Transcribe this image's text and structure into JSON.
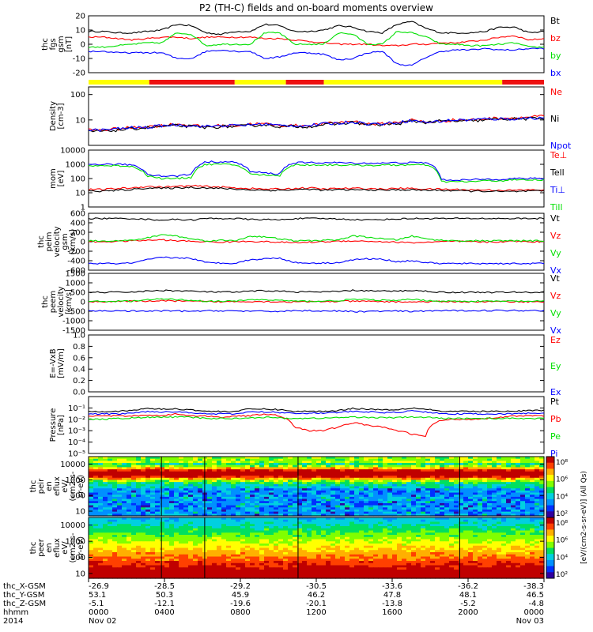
{
  "title": "P2 (TH-C) fields and on-board moments overview",
  "colors": {
    "black": "#000000",
    "red": "#ff0000",
    "green": "#00e000",
    "blue": "#0000ff",
    "yellow": "#ffff00",
    "bar_red": "#ee1111"
  },
  "chart_data": [
    {
      "type": "line",
      "ylabel_lines": [
        "thc",
        "fgs",
        "gsm",
        "[nT]"
      ],
      "ylim": [
        -20,
        20
      ],
      "yticks": [
        "20",
        "10",
        "0",
        "-10",
        "-20"
      ],
      "series": [
        {
          "name": "Bt",
          "color": "#000000",
          "values": [
            9,
            9,
            8,
            8,
            9,
            10,
            14,
            13,
            8,
            7,
            9,
            9,
            14,
            13,
            9,
            9,
            10,
            13,
            12,
            9,
            8,
            14,
            16,
            11,
            8,
            8,
            8,
            9,
            12,
            12,
            8,
            9
          ]
        },
        {
          "name": "bz",
          "color": "#ff0000",
          "values": [
            5,
            5,
            4,
            3,
            4,
            5,
            5,
            4,
            5,
            5,
            5,
            5,
            4,
            4,
            3,
            2,
            1,
            0,
            0,
            0,
            -1,
            -1,
            0,
            0,
            1,
            1,
            2,
            3,
            5,
            6,
            3,
            4
          ]
        },
        {
          "name": "by",
          "color": "#00e000",
          "values": [
            -2,
            -2,
            -1,
            0,
            1,
            1,
            8,
            7,
            -1,
            0,
            0,
            0,
            8,
            8,
            0,
            0,
            0,
            8,
            7,
            0,
            0,
            9,
            8,
            5,
            0,
            0,
            -1,
            -1,
            0,
            1,
            -2,
            -2
          ]
        },
        {
          "name": "bx",
          "color": "#0000ff",
          "values": [
            -5,
            -5,
            -6,
            -6,
            -6,
            -6,
            -10,
            -10,
            -5,
            -4,
            -5,
            -5,
            -10,
            -9,
            -6,
            -6,
            -7,
            -11,
            -10,
            -6,
            -5,
            -14,
            -15,
            -9,
            -5,
            -4,
            -4,
            -3,
            -4,
            -4,
            -3,
            -3
          ]
        }
      ],
      "mode_bar": {
        "segments": [
          "yellow",
          "red",
          "yellow",
          "red",
          "yellow",
          "red"
        ],
        "breaks_hours": [
          0,
          3.2,
          7.7,
          10.4,
          12.4,
          21.8,
          24
        ]
      }
    },
    {
      "type": "line",
      "ylabel_lines": [
        "Density",
        "[cm-3]"
      ],
      "scale": "log",
      "ylim": [
        1,
        200
      ],
      "yticks": [
        "100",
        "10"
      ],
      "series": [
        {
          "name": "Ne",
          "color": "#ff0000",
          "values": [
            4,
            4,
            4.5,
            5,
            5.5,
            6,
            7,
            6,
            5.5,
            6,
            6,
            7,
            7,
            6,
            6,
            6,
            7,
            8,
            9,
            7,
            7,
            8,
            10,
            8,
            9,
            10,
            10,
            11,
            12,
            12,
            13,
            14
          ]
        },
        {
          "name": "Ni",
          "color": "#000000",
          "values": [
            3.5,
            3.6,
            4,
            4.5,
            5,
            5.5,
            6,
            5.5,
            5,
            5.5,
            5.5,
            6,
            6.5,
            5.5,
            5.5,
            5.5,
            6.5,
            7,
            8,
            6.5,
            6.5,
            7,
            9,
            8,
            9,
            9,
            9,
            10,
            11,
            11,
            11,
            12
          ]
        },
        {
          "name": "Npot",
          "color": "#0000ff",
          "values": [
            4,
            4,
            4.5,
            5,
            5,
            6,
            6.5,
            6,
            5.5,
            6,
            6,
            6.5,
            7,
            6,
            6,
            6,
            7,
            7.5,
            8.5,
            7,
            7,
            8,
            9.5,
            8,
            9,
            10,
            10,
            11,
            11,
            11,
            12,
            12
          ]
        }
      ]
    },
    {
      "type": "line",
      "ylabel_lines": [
        "mom",
        "[eV]"
      ],
      "scale": "log",
      "ylim": [
        1,
        10000
      ],
      "yticks": [
        "10000",
        "1000",
        "100",
        "10",
        "1"
      ],
      "series": [
        {
          "name": "Te⊥",
          "color": "#ff0000",
          "values": [
            17,
            17,
            20,
            22,
            28,
            25,
            28,
            30,
            28,
            25,
            22,
            20,
            18,
            18,
            20,
            22,
            18,
            20,
            20,
            20,
            18,
            20,
            20,
            18,
            18,
            17,
            16,
            16,
            15,
            15,
            16,
            16
          ]
        },
        {
          "name": "Tell",
          "color": "#000000",
          "values": [
            13,
            13,
            15,
            17,
            22,
            20,
            22,
            24,
            22,
            20,
            18,
            16,
            15,
            15,
            16,
            18,
            15,
            16,
            16,
            16,
            15,
            16,
            16,
            15,
            15,
            14,
            13,
            13,
            12,
            12,
            13,
            13
          ]
        },
        {
          "name": "Ti⊥",
          "color": "#0000ff",
          "values": [
            1000,
            1000,
            1000,
            900,
            200,
            150,
            150,
            200,
            1500,
            1500,
            1400,
            300,
            250,
            200,
            1300,
            1300,
            1300,
            1300,
            1200,
            1200,
            1200,
            1300,
            1300,
            1300,
            80,
            80,
            80,
            90,
            90,
            100,
            100,
            100
          ]
        },
        {
          "name": "Till",
          "color": "#00e000",
          "values": [
            800,
            800,
            800,
            700,
            150,
            100,
            100,
            120,
            1000,
            1000,
            900,
            200,
            180,
            150,
            900,
            900,
            900,
            900,
            850,
            850,
            850,
            900,
            900,
            900,
            60,
            60,
            60,
            70,
            70,
            80,
            80,
            80
          ]
        }
      ]
    },
    {
      "type": "line",
      "ylabel_lines": [
        "thc",
        "peim",
        "velocity",
        "gsm",
        "[km/s]"
      ],
      "ylim": [
        -600,
        600
      ],
      "yticks": [
        "600",
        "400",
        "200",
        "0",
        "-200",
        "-400",
        "-600"
      ],
      "series": [
        {
          "name": "Vt",
          "color": "#000000",
          "values": [
            490,
            490,
            490,
            490,
            470,
            460,
            470,
            460,
            490,
            490,
            490,
            470,
            470,
            460,
            490,
            490,
            490,
            480,
            470,
            460,
            470,
            480,
            490,
            490,
            490,
            490,
            490,
            490,
            490,
            490,
            490,
            490
          ]
        },
        {
          "name": "Vz",
          "color": "#ff0000",
          "values": [
            0,
            0,
            10,
            20,
            30,
            40,
            20,
            10,
            0,
            -10,
            0,
            10,
            0,
            -10,
            -20,
            -10,
            0,
            10,
            20,
            10,
            0,
            -10,
            -20,
            -10,
            0,
            10,
            0,
            -10,
            0,
            10,
            0,
            0
          ]
        },
        {
          "name": "Vy",
          "color": "#00e000",
          "values": [
            20,
            20,
            20,
            30,
            80,
            150,
            120,
            60,
            20,
            30,
            20,
            120,
            100,
            60,
            20,
            20,
            30,
            40,
            120,
            100,
            60,
            40,
            120,
            60,
            30,
            20,
            20,
            20,
            20,
            20,
            20,
            20
          ]
        },
        {
          "name": "Vx",
          "color": "#0000ff",
          "values": [
            -460,
            -460,
            -460,
            -450,
            -380,
            -330,
            -340,
            -350,
            -440,
            -450,
            -450,
            -380,
            -360,
            -340,
            -440,
            -450,
            -450,
            -440,
            -380,
            -360,
            -370,
            -420,
            -400,
            -440,
            -460,
            -460,
            -460,
            -460,
            -460,
            -460,
            -460,
            -460
          ]
        }
      ]
    },
    {
      "type": "line",
      "ylabel_lines": [
        "thc",
        "peem",
        "velocity",
        "[km/s]"
      ],
      "ylim": [
        -1500,
        1500
      ],
      "yticks": [
        "1500",
        "1000",
        "500",
        "0",
        "-500",
        "-1000",
        "-1500"
      ],
      "series": [
        {
          "name": "Vt",
          "color": "#000000",
          "values": [
            500,
            500,
            500,
            520,
            560,
            600,
            580,
            560,
            520,
            520,
            500,
            560,
            580,
            560,
            520,
            520,
            520,
            540,
            600,
            580,
            560,
            560,
            600,
            560,
            500,
            500,
            500,
            500,
            500,
            500,
            500,
            500
          ]
        },
        {
          "name": "Vz",
          "color": "#ff0000",
          "values": [
            10,
            10,
            20,
            30,
            40,
            50,
            40,
            20,
            10,
            0,
            10,
            20,
            10,
            0,
            -10,
            0,
            10,
            20,
            30,
            20,
            10,
            0,
            -10,
            0,
            10,
            10,
            0,
            0,
            10,
            10,
            0,
            0
          ]
        },
        {
          "name": "Vy",
          "color": "#00e000",
          "values": [
            20,
            20,
            30,
            40,
            100,
            150,
            120,
            80,
            30,
            30,
            30,
            120,
            100,
            80,
            30,
            30,
            40,
            60,
            130,
            110,
            80,
            60,
            130,
            70,
            30,
            30,
            30,
            30,
            30,
            30,
            30,
            30
          ]
        },
        {
          "name": "Vx",
          "color": "#0000ff",
          "values": [
            -480,
            -480,
            -480,
            -490,
            -500,
            -480,
            -490,
            -500,
            -480,
            -470,
            -480,
            -500,
            -510,
            -500,
            -470,
            -470,
            -480,
            -490,
            -520,
            -510,
            -500,
            -490,
            -520,
            -480,
            -470,
            -470,
            -460,
            -460,
            -460,
            -460,
            -460,
            -460
          ]
        }
      ]
    },
    {
      "type": "line",
      "ylabel_lines": [
        "E=-VxB",
        "[mV/m]"
      ],
      "ylim": [
        0,
        1
      ],
      "yticks": [
        "1.0",
        "0.8",
        "0.6",
        "0.4",
        "0.2",
        "0.0"
      ],
      "series": [
        {
          "name": "Ez",
          "color": "#ff0000",
          "values": []
        },
        {
          "name": "Ey",
          "color": "#00e000",
          "values": []
        },
        {
          "name": "Ex",
          "color": "#0000ff",
          "values": []
        }
      ]
    },
    {
      "type": "line",
      "ylabel_lines": [
        "Pressure",
        "[nPa]"
      ],
      "scale": "log",
      "ylim": [
        1e-05,
        1
      ],
      "yticks": [
        "10⁻¹",
        "10⁻²",
        "10⁻³",
        "10⁻⁴",
        "10⁻⁵"
      ],
      "series": [
        {
          "name": "Pt",
          "color": "#000000",
          "values": [
            0.05,
            0.05,
            0.05,
            0.06,
            0.09,
            0.08,
            0.08,
            0.07,
            0.05,
            0.05,
            0.05,
            0.08,
            0.08,
            0.07,
            0.05,
            0.05,
            0.05,
            0.06,
            0.09,
            0.08,
            0.07,
            0.07,
            0.1,
            0.08,
            0.05,
            0.05,
            0.05,
            0.05,
            0.05,
            0.05,
            0.06,
            0.06
          ]
        },
        {
          "name": "Pb",
          "color": "#ff0000",
          "values": [
            0.02,
            0.02,
            0.02,
            0.02,
            0.025,
            0.02,
            0.03,
            0.02,
            0.02,
            0.015,
            0.02,
            0.02,
            0.03,
            0.02,
            0.002,
            0.001,
            0.001,
            0.002,
            0.005,
            0.003,
            0.002,
            0.001,
            0.0005,
            0.0003,
            0.008,
            0.01,
            0.01,
            0.012,
            0.015,
            0.02,
            0.02,
            0.02
          ]
        },
        {
          "name": "Pe",
          "color": "#00e000",
          "values": [
            0.01,
            0.01,
            0.012,
            0.013,
            0.015,
            0.015,
            0.016,
            0.015,
            0.012,
            0.012,
            0.012,
            0.014,
            0.015,
            0.013,
            0.012,
            0.012,
            0.013,
            0.014,
            0.016,
            0.015,
            0.014,
            0.014,
            0.016,
            0.015,
            0.012,
            0.012,
            0.012,
            0.012,
            0.012,
            0.012,
            0.012,
            0.012
          ]
        },
        {
          "name": "Pi",
          "color": "#0000ff",
          "values": [
            0.03,
            0.03,
            0.03,
            0.035,
            0.05,
            0.045,
            0.045,
            0.04,
            0.03,
            0.03,
            0.03,
            0.045,
            0.045,
            0.04,
            0.035,
            0.035,
            0.035,
            0.04,
            0.05,
            0.045,
            0.04,
            0.04,
            0.055,
            0.045,
            0.03,
            0.03,
            0.03,
            0.03,
            0.03,
            0.03,
            0.035,
            0.035
          ]
        }
      ]
    },
    {
      "type": "heatmap",
      "ylabel_lines": [
        "thc",
        "peir",
        "en",
        "eflux",
        "eV/",
        "(cm2-s-",
        "sr-eV)"
      ],
      "scale": "log",
      "ylim": [
        5,
        30000
      ],
      "yticks": [
        "10000",
        "1000",
        "100",
        "10"
      ]
    },
    {
      "type": "heatmap",
      "ylabel_lines": [
        "thc",
        "peer",
        "en",
        "eflux",
        "eV/",
        "(cm2-s-",
        "sr-eV)"
      ],
      "scale": "log",
      "ylim": [
        5,
        30000
      ],
      "yticks": [
        "10000",
        "1000",
        "100",
        "10"
      ]
    }
  ],
  "colorbar": {
    "label": "[eV/(cm2-s-sr-eV)] (All Qs)",
    "ticks_upper": [
      "10⁸",
      "10⁶",
      "10⁴",
      "10²"
    ],
    "ticks_lower": [
      "10⁸",
      "10⁶",
      "10⁴",
      "10²"
    ]
  },
  "xaxis": {
    "rows": [
      {
        "label": "thc_X-GSM",
        "values": [
          "-26.9",
          "-28.5",
          "-29.2",
          "-30.5",
          "-33.6",
          "-36.2",
          "-38.3"
        ]
      },
      {
        "label": "thc_Y-GSM",
        "values": [
          "53.1",
          "50.3",
          "45.9",
          "46.2",
          "47.8",
          "48.1",
          "46.5"
        ]
      },
      {
        "label": "thc_Z-GSM",
        "values": [
          "-5.1",
          "-12.1",
          "-19.6",
          "-20.1",
          "-13.8",
          "-5.2",
          "-4.8"
        ]
      },
      {
        "label": "hhmm",
        "values": [
          "0000",
          "0400",
          "0800",
          "1200",
          "1600",
          "2000",
          "0000"
        ]
      }
    ],
    "year": "2014",
    "date_start": "Nov 02",
    "date_end": "Nov 03"
  }
}
